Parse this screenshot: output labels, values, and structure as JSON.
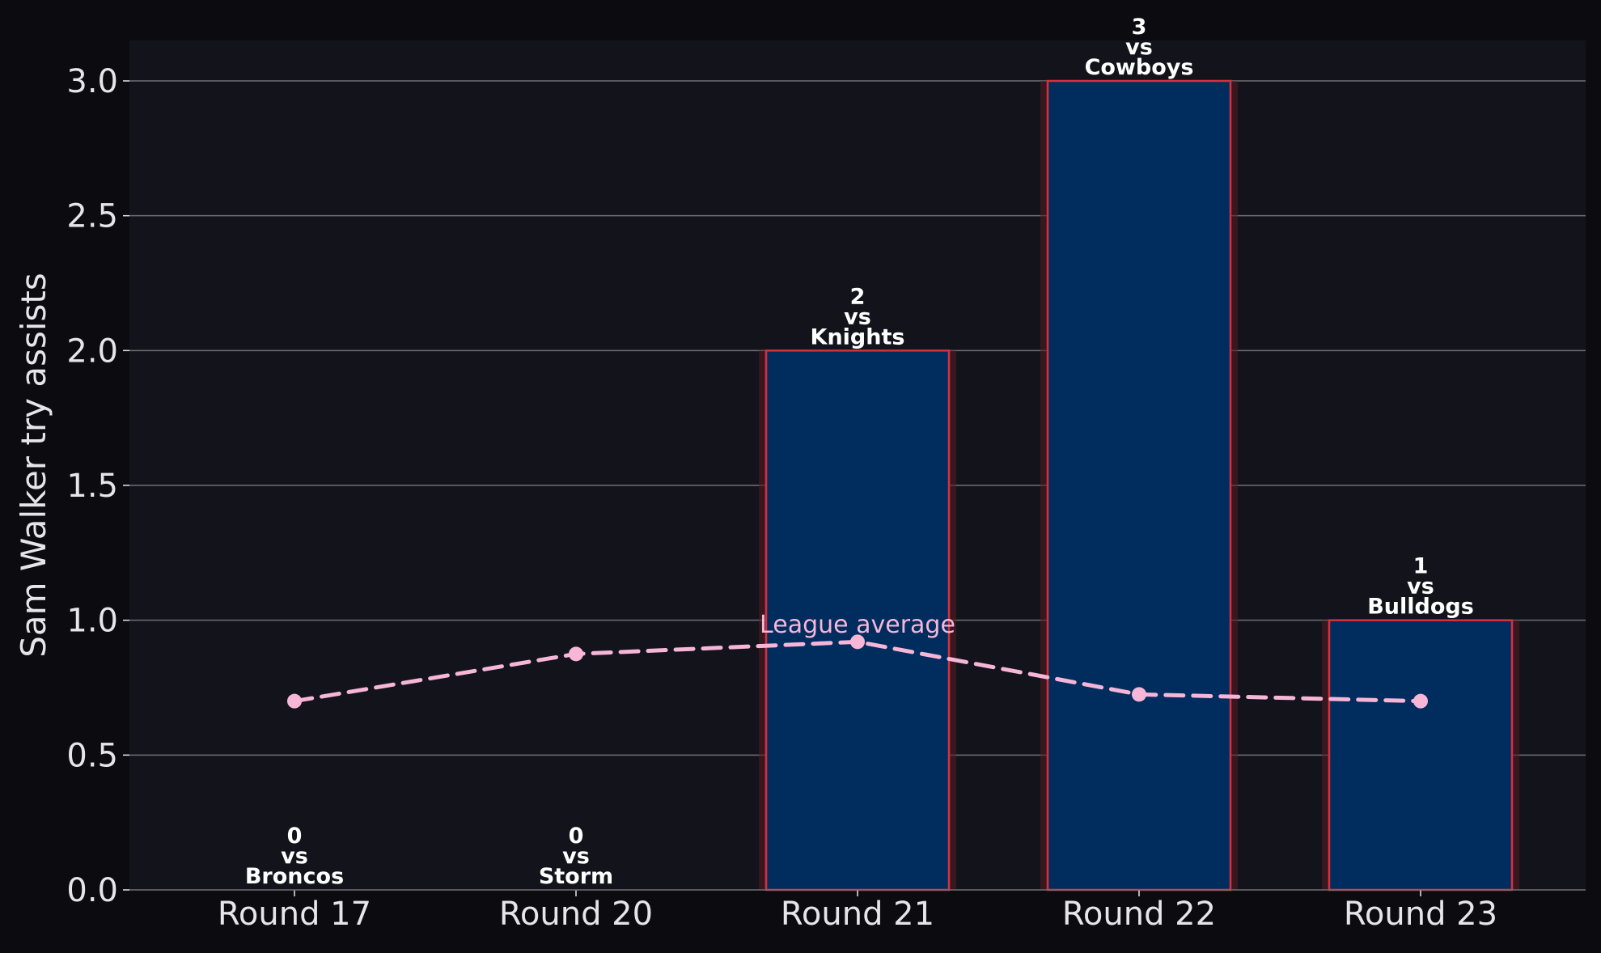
{
  "chart_data": {
    "type": "bar",
    "title": "",
    "xlabel": "",
    "ylabel": "Sam Walker try assists",
    "categories": [
      "Round 17",
      "Round 20",
      "Round 21",
      "Round 22",
      "Round 23"
    ],
    "series": [
      {
        "values": [
          0,
          0,
          2,
          3,
          1
        ],
        "opponents": [
          "Broncos",
          "Storm",
          "Knights",
          "Cowboys",
          "Bulldogs"
        ],
        "value_labels": [
          [
            "0",
            "vs",
            "Broncos"
          ],
          [
            "0",
            "vs",
            "Storm"
          ],
          [
            "2",
            "vs",
            "Knights"
          ],
          [
            "3",
            "vs",
            "Cowboys"
          ],
          [
            "1",
            "vs",
            "Bulldogs"
          ]
        ]
      },
      {
        "values": [
          0.7,
          0.875,
          0.92,
          0.725,
          0.7
        ],
        "style": "dashed-line-with-markers"
      }
    ],
    "annotation": "League average",
    "ylim": [
      0,
      3.15
    ],
    "yticks": [
      "0.0",
      "0.5",
      "1.0",
      "1.5",
      "2.0",
      "2.5",
      "3.0"
    ],
    "grid": "horizontal",
    "legend": "none"
  },
  "colors": {
    "page_bg": "#0c0c10",
    "plot_bg": "#13141b",
    "bar_fill": "#002d5e",
    "bar_edge": "#d7303d",
    "bar_glow": "#5a1a22",
    "line": "#f7b6d8",
    "grid": "#6f6f74",
    "text": "#e6e6ea",
    "label_text": "#ffffff",
    "annotation_text": "#f7b6d8"
  }
}
